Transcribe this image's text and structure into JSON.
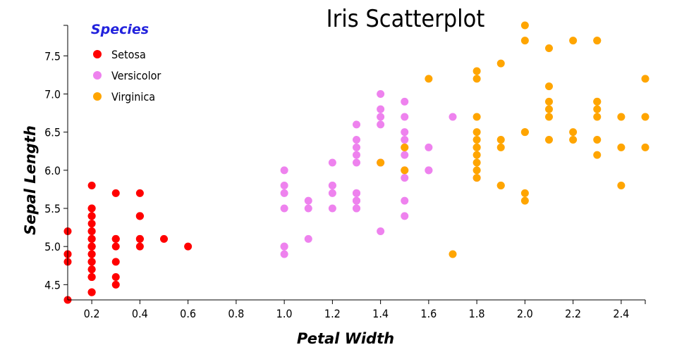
{
  "chart_data": {
    "type": "scatter",
    "title": "Iris Scatterplot",
    "xlabel": "Petal Width",
    "ylabel": "Sepal Length",
    "xlim": [
      0.1,
      2.5
    ],
    "ylim": [
      4.3,
      7.9
    ],
    "xticks": [
      "0.2",
      "0.4",
      "0.6",
      "0.8",
      "1.0",
      "1.2",
      "1.4",
      "1.6",
      "1.8",
      "2.0",
      "2.2",
      "2.4"
    ],
    "yticks": [
      "4.5",
      "5.0",
      "5.5",
      "6.0",
      "6.5",
      "7.0",
      "7.5"
    ],
    "grid": false,
    "legend": {
      "title": "Species",
      "placement": "top-left",
      "title_color": "#2222dd"
    },
    "series": [
      {
        "name": "Setosa",
        "color": "#ff0000",
        "x": [
          0.2,
          0.2,
          0.2,
          0.2,
          0.2,
          0.4,
          0.3,
          0.2,
          0.2,
          0.1,
          0.2,
          0.2,
          0.1,
          0.1,
          0.2,
          0.4,
          0.4,
          0.3,
          0.3,
          0.3,
          0.2,
          0.4,
          0.2,
          0.5,
          0.2,
          0.2,
          0.4,
          0.2,
          0.2,
          0.2,
          0.2,
          0.4,
          0.1,
          0.2,
          0.2,
          0.2,
          0.2,
          0.1,
          0.2,
          0.2,
          0.3,
          0.3,
          0.2,
          0.6,
          0.4,
          0.3,
          0.2,
          0.2,
          0.2,
          0.2
        ],
        "y": [
          5.1,
          4.9,
          4.7,
          4.6,
          5.0,
          5.4,
          4.6,
          5.0,
          4.4,
          4.9,
          5.4,
          4.8,
          4.8,
          4.3,
          5.8,
          5.7,
          5.4,
          5.1,
          5.7,
          5.1,
          5.4,
          5.1,
          4.6,
          5.1,
          4.8,
          5.0,
          5.0,
          5.2,
          5.2,
          4.7,
          4.8,
          5.4,
          5.2,
          5.5,
          4.9,
          5.0,
          5.5,
          4.9,
          4.4,
          5.1,
          5.0,
          4.5,
          4.4,
          5.0,
          5.1,
          4.8,
          5.1,
          4.6,
          5.3,
          5.0
        ]
      },
      {
        "name": "Versicolor",
        "color": "#ee82ee",
        "x": [
          1.4,
          1.5,
          1.5,
          1.3,
          1.5,
          1.3,
          1.6,
          1.0,
          1.3,
          1.4,
          1.0,
          1.5,
          1.0,
          1.4,
          1.3,
          1.4,
          1.5,
          1.0,
          1.5,
          1.1,
          1.8,
          1.3,
          1.5,
          1.2,
          1.3,
          1.4,
          1.4,
          1.7,
          1.5,
          1.0,
          1.1,
          1.0,
          1.2,
          1.6,
          1.5,
          1.6,
          1.5,
          1.3,
          1.3,
          1.3,
          1.2,
          1.4,
          1.2,
          1.0,
          1.3,
          1.2,
          1.3,
          1.3,
          1.1,
          1.3
        ],
        "y": [
          7.0,
          6.4,
          6.9,
          5.5,
          6.5,
          5.7,
          6.3,
          4.9,
          6.6,
          5.2,
          5.0,
          5.9,
          6.0,
          6.1,
          5.6,
          6.7,
          5.6,
          5.8,
          6.2,
          5.6,
          5.9,
          6.1,
          6.3,
          6.1,
          6.4,
          6.6,
          6.8,
          6.7,
          6.0,
          5.7,
          5.5,
          5.5,
          5.8,
          6.0,
          5.4,
          6.0,
          6.7,
          6.3,
          5.6,
          5.5,
          5.5,
          6.1,
          5.8,
          5.0,
          5.6,
          5.7,
          5.7,
          6.2,
          5.1,
          5.7
        ]
      },
      {
        "name": "Virginica",
        "color": "#ffa500",
        "x": [
          2.5,
          1.9,
          2.1,
          1.8,
          2.2,
          2.1,
          1.7,
          1.8,
          1.8,
          2.5,
          2.0,
          1.9,
          2.1,
          2.0,
          2.4,
          2.3,
          1.8,
          2.2,
          2.3,
          1.5,
          2.3,
          2.0,
          2.0,
          1.8,
          2.1,
          1.8,
          1.8,
          1.8,
          2.1,
          1.6,
          1.9,
          2.0,
          2.2,
          1.5,
          1.4,
          2.3,
          2.4,
          1.8,
          1.8,
          2.1,
          2.4,
          2.3,
          1.9,
          2.3,
          2.5,
          2.3,
          1.9,
          2.0,
          2.3,
          1.8
        ],
        "y": [
          6.3,
          5.8,
          7.1,
          6.3,
          6.5,
          7.6,
          4.9,
          7.3,
          6.7,
          7.2,
          6.5,
          6.4,
          6.8,
          5.7,
          5.8,
          6.4,
          6.5,
          7.7,
          7.7,
          6.0,
          6.9,
          5.6,
          7.7,
          6.3,
          6.7,
          7.2,
          6.2,
          6.1,
          6.4,
          7.2,
          7.4,
          7.9,
          6.4,
          6.3,
          6.1,
          7.7,
          6.3,
          6.4,
          6.0,
          6.9,
          6.7,
          6.9,
          5.8,
          6.8,
          6.7,
          6.7,
          6.3,
          6.5,
          6.2,
          5.9
        ]
      }
    ]
  }
}
